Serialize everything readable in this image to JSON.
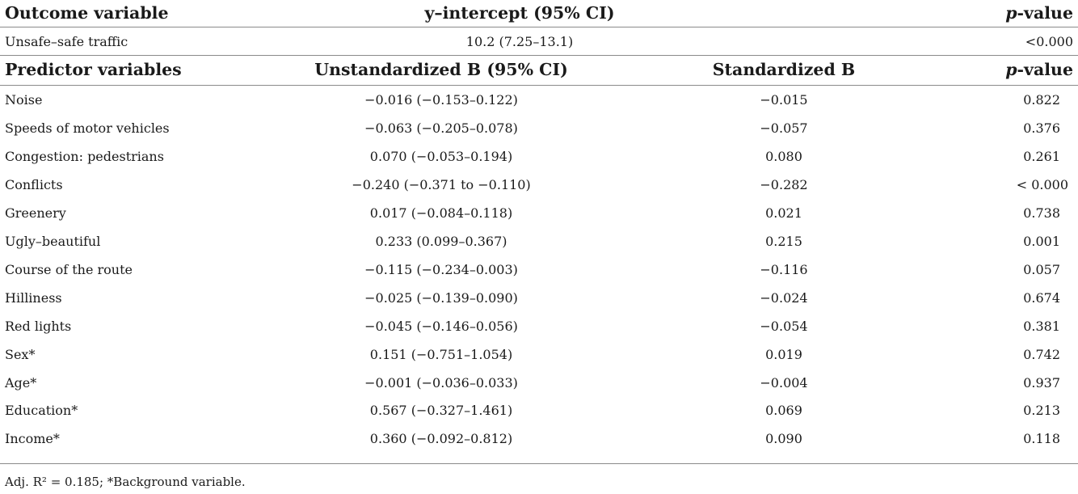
{
  "outcome_header": {
    "col1": "Outcome variable",
    "col2": "y–intercept (95% CI)",
    "col3_italic": "p",
    "col3_rest": "-value"
  },
  "outcome_row": {
    "variable": "Unsafe–safe traffic",
    "intercept": "10.2 (7.25–13.1)",
    "p": "<0.000"
  },
  "predictor_header": {
    "col1": "Predictor variables",
    "col2": "Unstandardized B (95% CI)",
    "col3": "Standardized B",
    "col4_italic": "p",
    "col4_rest": "-value"
  },
  "rows": [
    {
      "variable": "Noise",
      "unstd": "−0.016 (−0.153–0.122)",
      "std": "−0.015",
      "p": "0.822"
    },
    {
      "variable": "Speeds of motor vehicles",
      "unstd": "−0.063 (−0.205–0.078)",
      "std": "−0.057",
      "p": "0.376"
    },
    {
      "variable": "Congestion: pedestrians",
      "unstd": "0.070 (−0.053–0.194)",
      "std": "0.080",
      "p": "0.261"
    },
    {
      "variable": "Conflicts",
      "unstd": "−0.240 (−0.371 to −0.110)",
      "std": "−0.282",
      "p": "< 0.000"
    },
    {
      "variable": "Greenery",
      "unstd": "0.017 (−0.084–0.118)",
      "std": "0.021",
      "p": "0.738"
    },
    {
      "variable": "Ugly–beautiful",
      "unstd": "0.233 (0.099–0.367)",
      "std": "0.215",
      "p": "0.001"
    },
    {
      "variable": "Course of the route",
      "unstd": "−0.115 (−0.234–0.003)",
      "std": "−0.116",
      "p": "0.057"
    },
    {
      "variable": "Hilliness",
      "unstd": "−0.025 (−0.139–0.090)",
      "std": "−0.024",
      "p": "0.674"
    },
    {
      "variable": "Red lights",
      "unstd": "−0.045 (−0.146–0.056)",
      "std": "−0.054",
      "p": "0.381"
    },
    {
      "variable": "Sex*",
      "unstd": "0.151 (−0.751–1.054)",
      "std": "0.019",
      "p": "0.742"
    },
    {
      "variable": "Age*",
      "unstd": "−0.001 (−0.036–0.033)",
      "std": "−0.004",
      "p": "0.937"
    },
    {
      "variable": "Education*",
      "unstd": "0.567 (−0.327–1.461)",
      "std": "0.069",
      "p": "0.213"
    },
    {
      "variable": "Income*",
      "unstd": "0.360 (−0.092–0.812)",
      "std": "0.090",
      "p": "0.118"
    }
  ],
  "footnote": "Adj. R² = 0.185; *Background variable."
}
